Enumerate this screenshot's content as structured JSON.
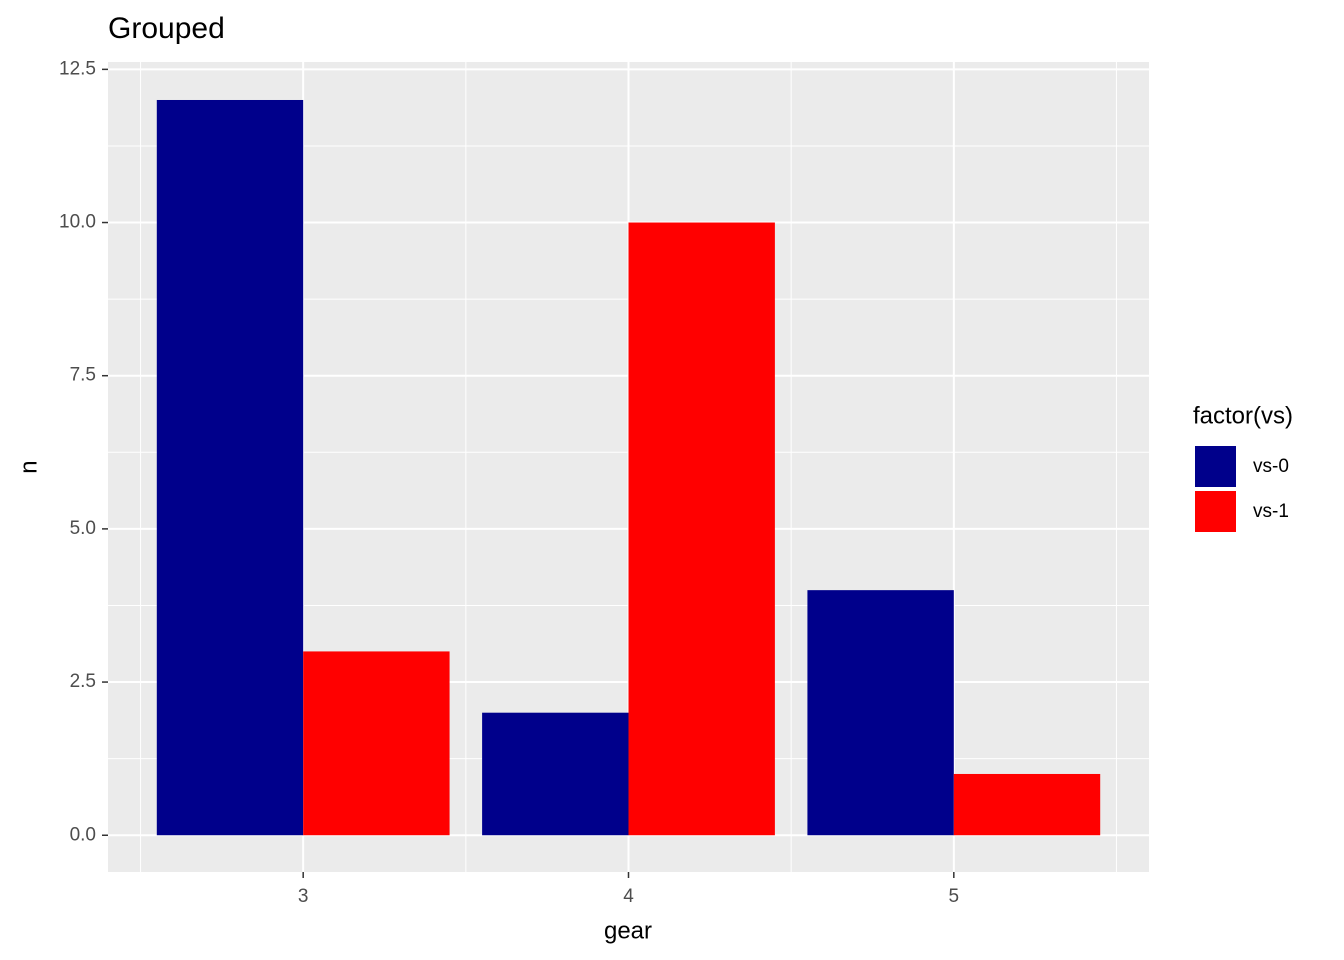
{
  "chart_data": {
    "type": "bar",
    "title": "Grouped",
    "x_label": "gear",
    "y_label": "n",
    "legend_title": "factor(vs)",
    "categories": [
      "3",
      "4",
      "5"
    ],
    "series": [
      {
        "name": "vs-0",
        "color": "#00008B",
        "values": [
          12,
          2,
          4
        ]
      },
      {
        "name": "vs-1",
        "color": "#FF0000",
        "values": [
          3,
          10,
          1
        ]
      }
    ],
    "ylim": [
      -0.6,
      12.62
    ],
    "yticks": [
      {
        "value": 0,
        "label": "0.0"
      },
      2.5,
      {
        "value": 5,
        "label": "5.0"
      },
      7.5,
      {
        "value": 10,
        "label": "10.0"
      },
      12.5
    ],
    "grid": true,
    "legend": "right"
  }
}
